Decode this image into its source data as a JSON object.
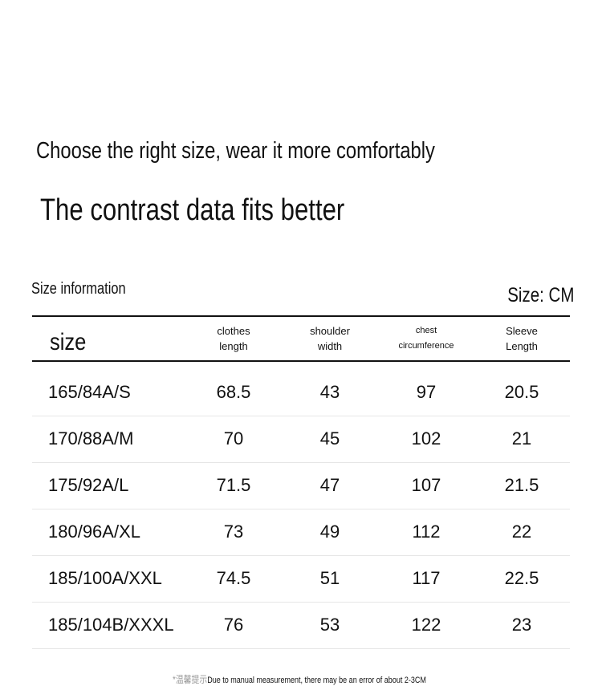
{
  "header": {
    "tagline": "Choose the right size, wear it more comfortably",
    "title": "The contrast data fits better"
  },
  "table": {
    "caption": "Size information",
    "unit": "Size: CM",
    "columns": [
      [
        "size"
      ],
      [
        "clothes",
        "length"
      ],
      [
        "shoulder",
        "width"
      ],
      [
        "chest",
        "circumference"
      ],
      [
        "Sleeve",
        "Length"
      ]
    ],
    "rows": [
      [
        "165/84A/S",
        68.5,
        43,
        97,
        20.5
      ],
      [
        "170/88A/M",
        70,
        45,
        102,
        21
      ],
      [
        "175/92A/L",
        71.5,
        47,
        107,
        21.5
      ],
      [
        "180/96A/XL",
        73,
        49,
        112,
        22
      ],
      [
        "185/100A/XXL",
        74.5,
        51,
        117,
        22.5
      ],
      [
        "185/104B/XXXL",
        76,
        53,
        122,
        23
      ]
    ]
  },
  "footer": {
    "prefix": "*温馨提示",
    "note": "Due to manual measurement, there may be an error of about 2-3CM"
  }
}
